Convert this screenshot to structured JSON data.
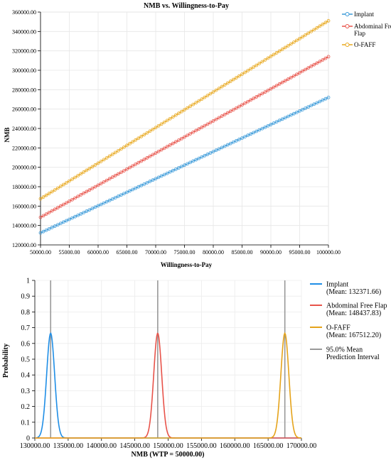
{
  "chart_data": [
    {
      "type": "line",
      "title": "NMB vs. Willingness-to-Pay",
      "xlabel": "Willingness-to-Pay",
      "ylabel": "NMB",
      "xlim": [
        50000,
        100000
      ],
      "ylim": [
        120000,
        360000
      ],
      "xticks": [
        "50000.00",
        "55000.00",
        "60000.00",
        "65000.00",
        "70000.00",
        "75000.00",
        "80000.00",
        "85000.00",
        "90000.00",
        "95000.00",
        "100000.00"
      ],
      "yticks": [
        "120000.00",
        "140000.00",
        "160000.00",
        "180000.00",
        "200000.00",
        "220000.00",
        "240000.00",
        "260000.00",
        "280000.00",
        "300000.00",
        "320000.00",
        "340000.00",
        "360000.00"
      ],
      "grid": true,
      "legend_position": "top-right",
      "markers": "circle",
      "series": [
        {
          "name": "Implant",
          "color": "#3a9ad9",
          "x": [
            50000,
            100000
          ],
          "y": [
            132371.66,
            272000
          ]
        },
        {
          "name": "Abdominal Free Flap",
          "color": "#e8534a",
          "x": [
            50000,
            100000
          ],
          "y": [
            148437.83,
            314000
          ]
        },
        {
          "name": "O-FAFF",
          "color": "#e8a81e",
          "x": [
            50000,
            100000
          ],
          "y": [
            167512.2,
            351000
          ]
        }
      ]
    },
    {
      "type": "line",
      "title": "",
      "xlabel": "NMB (WTP = 50000.00)",
      "ylabel": "Probability",
      "xlim": [
        130000,
        170000
      ],
      "ylim": [
        0,
        1
      ],
      "xticks": [
        "130000.00",
        "135000.00",
        "140000.00",
        "145000.00",
        "150000.00",
        "155000.00",
        "160000.00",
        "165000.00",
        "170000.00"
      ],
      "yticks": [
        "0",
        "0.1",
        "0.2",
        "0.3",
        "0.4",
        "0.5",
        "0.6",
        "0.7",
        "0.8",
        "0.9",
        "1"
      ],
      "grid": true,
      "legend_position": "right",
      "series": [
        {
          "name": "Implant",
          "mean_label": "(Mean: 132371.66)",
          "color": "#1f8ee6",
          "mean": 132371.66,
          "sd": 600,
          "peak": 0.665
        },
        {
          "name": "Abdominal Free Flap",
          "mean_label": "(Mean: 148437.83)",
          "color": "#e8534a",
          "mean": 148437.83,
          "sd": 600,
          "peak": 0.665
        },
        {
          "name": "O-FAFF",
          "mean_label": "(Mean: 167512.20)",
          "color": "#e5a31a",
          "mean": 167512.2,
          "sd": 600,
          "peak": 0.665
        }
      ],
      "interval": {
        "name": "95.0% Mean",
        "name2": "Prediction Interval",
        "color": "#999999"
      }
    }
  ]
}
